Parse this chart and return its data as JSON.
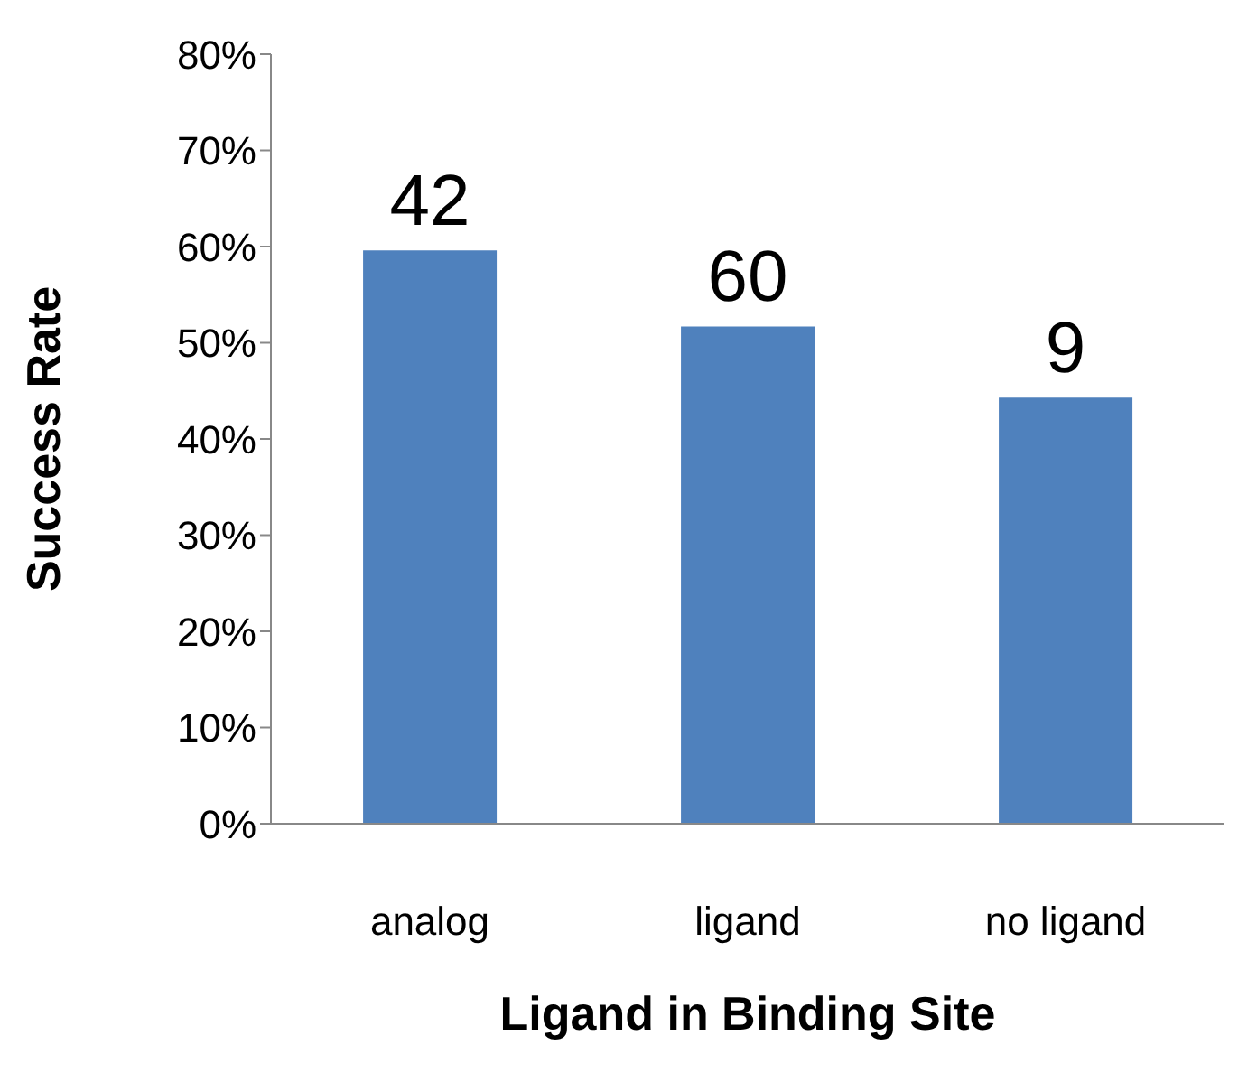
{
  "chart_data": {
    "type": "bar",
    "xlabel": "Ligand in Binding Site",
    "ylabel": "Success Rate",
    "categories": [
      "analog",
      "ligand",
      "no ligand"
    ],
    "values": [
      59.6,
      51.7,
      44.3
    ],
    "annotations": [
      {
        "text": "42",
        "x": "analog",
        "y": 59.6
      },
      {
        "text": "60",
        "x": "ligand",
        "y": 51.7
      },
      {
        "text": "9",
        "x": "no ligand",
        "y": 44.3
      }
    ],
    "color": "#4f81bd",
    "ylim": [
      0,
      80
    ],
    "yticks": [
      {
        "value": 0,
        "label": "0%"
      },
      {
        "value": 10,
        "label": "10%"
      },
      {
        "value": 20,
        "label": "20%"
      },
      {
        "value": 30,
        "label": "30%"
      },
      {
        "value": 40,
        "label": "40%"
      },
      {
        "value": 50,
        "label": "50%"
      },
      {
        "value": 60,
        "label": "60%"
      },
      {
        "value": 70,
        "label": "70%"
      },
      {
        "value": 80,
        "label": "80%"
      }
    ],
    "grid": false,
    "legend": false
  }
}
